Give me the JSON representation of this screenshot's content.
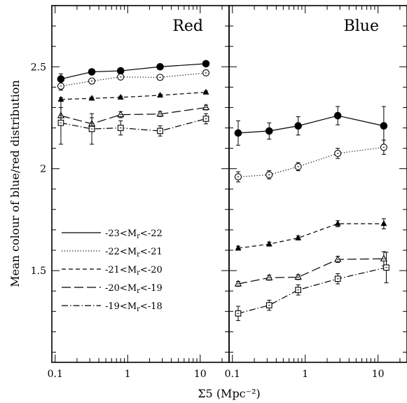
{
  "chart_data": {
    "type": "line",
    "title": "",
    "xlabel": "Σ5 (Mpc⁻²)",
    "ylabel": "Mean colour of blue/red distribution",
    "x_scale": "log",
    "xlim": [
      0.09,
      25
    ],
    "ylim": [
      1.05,
      2.8
    ],
    "x_ticks": [
      0.1,
      1,
      10
    ],
    "x_tick_labels": [
      "0.1",
      "1",
      "10"
    ],
    "y_ticks": [
      1.5,
      2,
      2.5
    ],
    "y_tick_labels": [
      "1.5",
      "2",
      "2.5"
    ],
    "grid": false,
    "legend_position": "lower-left of left panel",
    "legend": [
      {
        "label": "-23<M",
        "sub": "r",
        "tail": "<-22",
        "style": "solid",
        "marker": "filled-circle"
      },
      {
        "label": "-22<M",
        "sub": "r",
        "tail": "<-21",
        "style": "dotted",
        "marker": "open-circle"
      },
      {
        "label": "-21<M",
        "sub": "r",
        "tail": "<-20",
        "style": "short-dash",
        "marker": "filled-triangle"
      },
      {
        "label": "-20<M",
        "sub": "r",
        "tail": "<-19",
        "style": "long-dash",
        "marker": "open-triangle"
      },
      {
        "label": "-19<M",
        "sub": "r",
        "tail": "<-18",
        "style": "dash-dot",
        "marker": "open-square"
      }
    ],
    "panels": [
      {
        "title": "Red",
        "series": [
          {
            "style": "solid",
            "marker": "filled-circle",
            "x": [
              0.12,
              0.32,
              0.8,
              2.8,
              12
            ],
            "y": [
              2.44,
              2.475,
              2.48,
              2.5,
              2.515
            ],
            "err": [
              0.025,
              0.01,
              0.01,
              0.008,
              0.008
            ]
          },
          {
            "style": "dotted",
            "marker": "open-circle",
            "x": [
              0.12,
              0.32,
              0.8,
              2.8,
              12
            ],
            "y": [
              2.405,
              2.43,
              2.45,
              2.448,
              2.47
            ],
            "err": [
              0.02,
              0.012,
              0.01,
              0.01,
              0.01
            ]
          },
          {
            "style": "short-dash",
            "marker": "filled-triangle",
            "x": [
              0.12,
              0.32,
              0.8,
              2.8,
              12
            ],
            "y": [
              2.34,
              2.345,
              2.35,
              2.36,
              2.375
            ],
            "err": [
              0.008,
              0.006,
              0.006,
              0.006,
              0.006
            ]
          },
          {
            "style": "long-dash",
            "marker": "open-triangle",
            "x": [
              0.12,
              0.32,
              0.8,
              2.8,
              12
            ],
            "y": [
              2.26,
              2.22,
              2.265,
              2.268,
              2.3
            ],
            "err": [
              0.04,
              0.03,
              0.015,
              0.012,
              0.012
            ]
          },
          {
            "style": "dash-dot",
            "marker": "open-square",
            "x": [
              0.12,
              0.32,
              0.8,
              2.8,
              12
            ],
            "y": [
              2.225,
              2.195,
              2.2,
              2.185,
              2.245
            ],
            "err": [
              0.105,
              0.075,
              0.035,
              0.025,
              0.025
            ]
          }
        ]
      },
      {
        "title": "Blue",
        "series": [
          {
            "style": "solid",
            "marker": "filled-circle",
            "x": [
              0.12,
              0.32,
              0.8,
              2.8,
              12
            ],
            "y": [
              2.175,
              2.185,
              2.21,
              2.26,
              2.21
            ],
            "err": [
              0.06,
              0.04,
              0.045,
              0.045,
              0.095
            ]
          },
          {
            "style": "dotted",
            "marker": "open-circle",
            "x": [
              0.12,
              0.32,
              0.8,
              2.8,
              12
            ],
            "y": [
              1.96,
              1.97,
              2.01,
              2.075,
              2.105
            ],
            "err": [
              0.025,
              0.02,
              0.02,
              0.025,
              0.035
            ]
          },
          {
            "style": "short-dash",
            "marker": "filled-triangle",
            "x": [
              0.12,
              0.32,
              0.8,
              2.8,
              12
            ],
            "y": [
              1.61,
              1.63,
              1.66,
              1.73,
              1.73
            ],
            "err": [
              0.01,
              0.01,
              0.01,
              0.015,
              0.025
            ]
          },
          {
            "style": "long-dash",
            "marker": "open-triangle",
            "x": [
              0.12,
              0.32,
              0.8,
              2.8,
              12
            ],
            "y": [
              1.435,
              1.465,
              1.468,
              1.555,
              1.558
            ],
            "err": [
              0.012,
              0.012,
              0.012,
              0.015,
              0.035
            ]
          },
          {
            "style": "dash-dot",
            "marker": "open-square",
            "x": [
              0.12,
              0.32,
              0.8,
              2.8,
              13
            ],
            "y": [
              1.29,
              1.33,
              1.405,
              1.46,
              1.515
            ],
            "err": [
              0.035,
              0.025,
              0.025,
              0.025,
              0.075
            ]
          }
        ]
      }
    ]
  }
}
